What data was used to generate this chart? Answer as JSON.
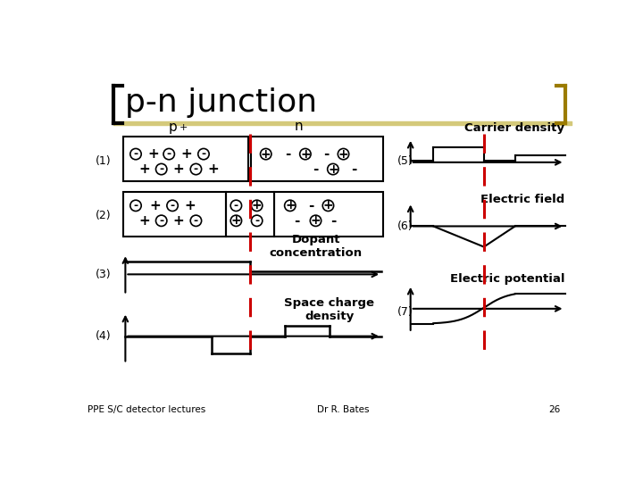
{
  "title": "p-n junction",
  "title_fontsize": 26,
  "background_color": "#ffffff",
  "bracket_color_left": "#000000",
  "bracket_color_right": "#9B7B00",
  "header_bar_color": "#D4C97A",
  "dashed_line_color": "#CC0000",
  "footer_texts": [
    "PPE S/C detector lectures",
    "Dr R. Bates",
    "26"
  ],
  "labels_left": [
    "(1)",
    "(2)",
    "(3)",
    "(4)"
  ],
  "labels_right": [
    "(5)",
    "(6)",
    "(7)"
  ],
  "section_labels": [
    "Carrier density",
    "Electric field",
    "Electric potential"
  ],
  "box_labels": [
    "Dopant\nconcentration",
    "Space charge\ndensity"
  ],
  "p_label": "p",
  "p_super": "+",
  "n_label": "n"
}
